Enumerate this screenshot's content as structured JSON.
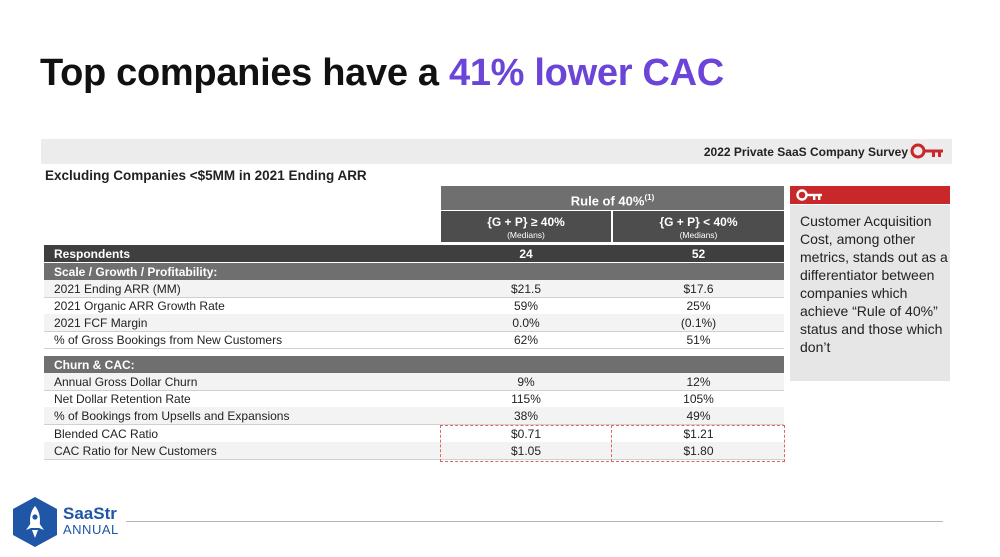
{
  "slide": {
    "title_prefix": "Top companies have a ",
    "title_accent": "41% lower CAC",
    "accent_color": "#6b44d8"
  },
  "banner": {
    "text": "2022 Private SaaS Company Survey",
    "icon": "key-icon"
  },
  "subtitle": "Excluding Companies <$5MM in 2021 Ending ARR",
  "table": {
    "group_header": "Rule of 40%",
    "group_header_sup": "(1)",
    "columns": [
      {
        "main": "{G + P} ≥ 40%",
        "sub": "(Medians)"
      },
      {
        "main": "{G + P} < 40%",
        "sub": "(Medians)"
      }
    ],
    "respondents": {
      "label": "Respondents",
      "values": [
        "24",
        "52"
      ]
    },
    "section1": "Scale / Growth / Profitability:",
    "rows1": [
      {
        "label": "2021 Ending ARR (MM)",
        "v1": "$21.5",
        "v2": "$17.6"
      },
      {
        "label": "2021 Organic ARR Growth Rate",
        "v1": "59%",
        "v2": "25%"
      },
      {
        "label": "2021 FCF Margin",
        "v1": "0.0%",
        "v2": "(0.1%)"
      },
      {
        "label": "% of Gross Bookings from New Customers",
        "v1": "62%",
        "v2": "51%"
      }
    ],
    "section2": "Churn & CAC:",
    "rows2": [
      {
        "label": "Annual Gross Dollar Churn",
        "v1": "9%",
        "v2": "12%"
      },
      {
        "label": "Net Dollar Retention Rate",
        "v1": "115%",
        "v2": "105%"
      },
      {
        "label": "% of Bookings from Upsells and Expansions",
        "v1": "38%",
        "v2": "49%"
      },
      {
        "label": "Blended CAC Ratio",
        "v1": "$0.71",
        "v2": "$1.21"
      },
      {
        "label": "CAC Ratio for New Customers",
        "v1": "$1.05",
        "v2": "$1.80"
      }
    ]
  },
  "note": {
    "icon": "key-icon",
    "text": "Customer Acquisition Cost, among other metrics, stands out as a differentiator between companies which achieve “Rule of 40%” status and those which don’t"
  },
  "logo": {
    "name": "SaaStr",
    "sub": "ANNUAL"
  }
}
